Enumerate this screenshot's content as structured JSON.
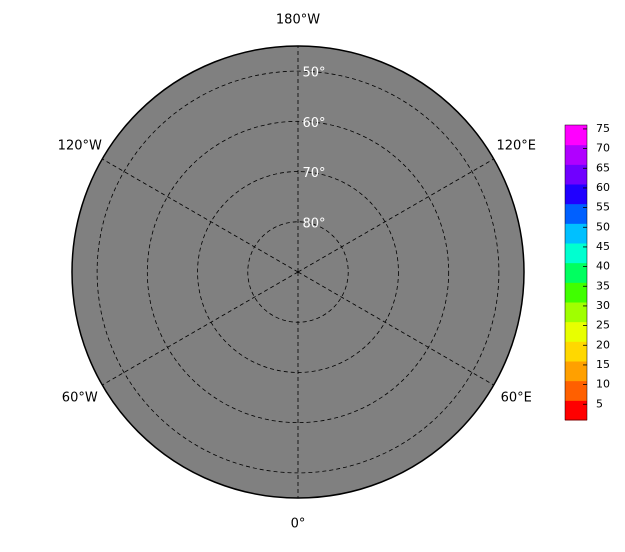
{
  "map": {
    "latlim": [
      45,
      90
    ],
    "lat_circles": [
      {
        "value": 50,
        "label": "50°"
      },
      {
        "value": 60,
        "label": "60°"
      },
      {
        "value": 70,
        "label": "70°"
      },
      {
        "value": 80,
        "label": "80°"
      }
    ],
    "lon_ticks": [
      {
        "value": -180,
        "label": "180°W"
      },
      {
        "value": -120,
        "label": "120°W"
      },
      {
        "value": -60,
        "label": "60°W"
      },
      {
        "value": 0,
        "label": "0°"
      },
      {
        "value": 60,
        "label": "60°E"
      },
      {
        "value": 120,
        "label": "120°E"
      }
    ],
    "ocean_color": "#808080",
    "colorbar": {
      "lim": [
        1,
        76
      ],
      "ticks": [
        5,
        10,
        15,
        20,
        25,
        30,
        35,
        40,
        45,
        50,
        55,
        60,
        65,
        70,
        75
      ],
      "colors": [
        "#ff0000",
        "#ff6000",
        "#ffa000",
        "#ffd800",
        "#e8ff00",
        "#a0ff00",
        "#40ff00",
        "#00ff60",
        "#00ffd0",
        "#00c0ff",
        "#0060ff",
        "#2000ff",
        "#7000ff",
        "#b000ff",
        "#ff00ff"
      ]
    }
  }
}
